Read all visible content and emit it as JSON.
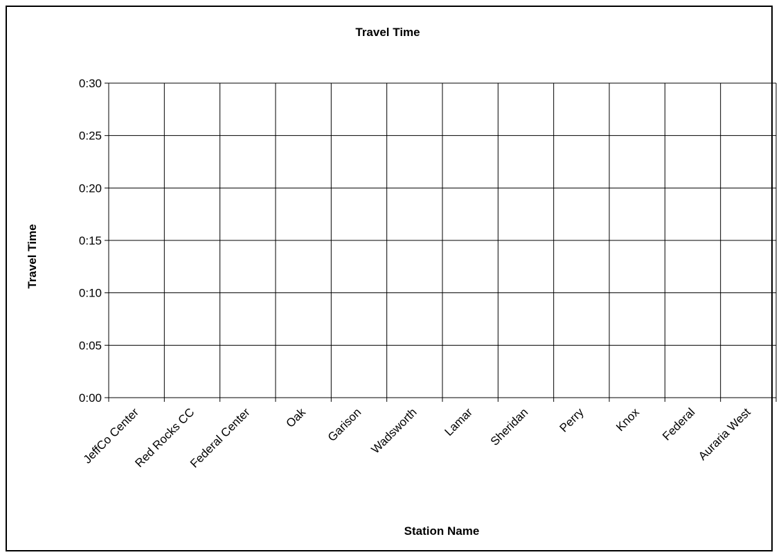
{
  "chart_data": {
    "type": "line",
    "title": "Travel Time",
    "xlabel": "Station Name",
    "ylabel": "Travel Time",
    "categories": [
      "JeffCo Center",
      "Red Rocks CC",
      "Federal Center",
      "Oak",
      "Garison",
      "Wadsworth",
      "Lamar",
      "Sheridan",
      "Perry",
      "Knox",
      "Federal",
      "Auraria West"
    ],
    "y_tick_labels": [
      "0:00",
      "0:05",
      "0:10",
      "0:15",
      "0:20",
      "0:25",
      "0:30"
    ],
    "ylim": [
      0,
      30
    ],
    "grid": true,
    "series": []
  }
}
